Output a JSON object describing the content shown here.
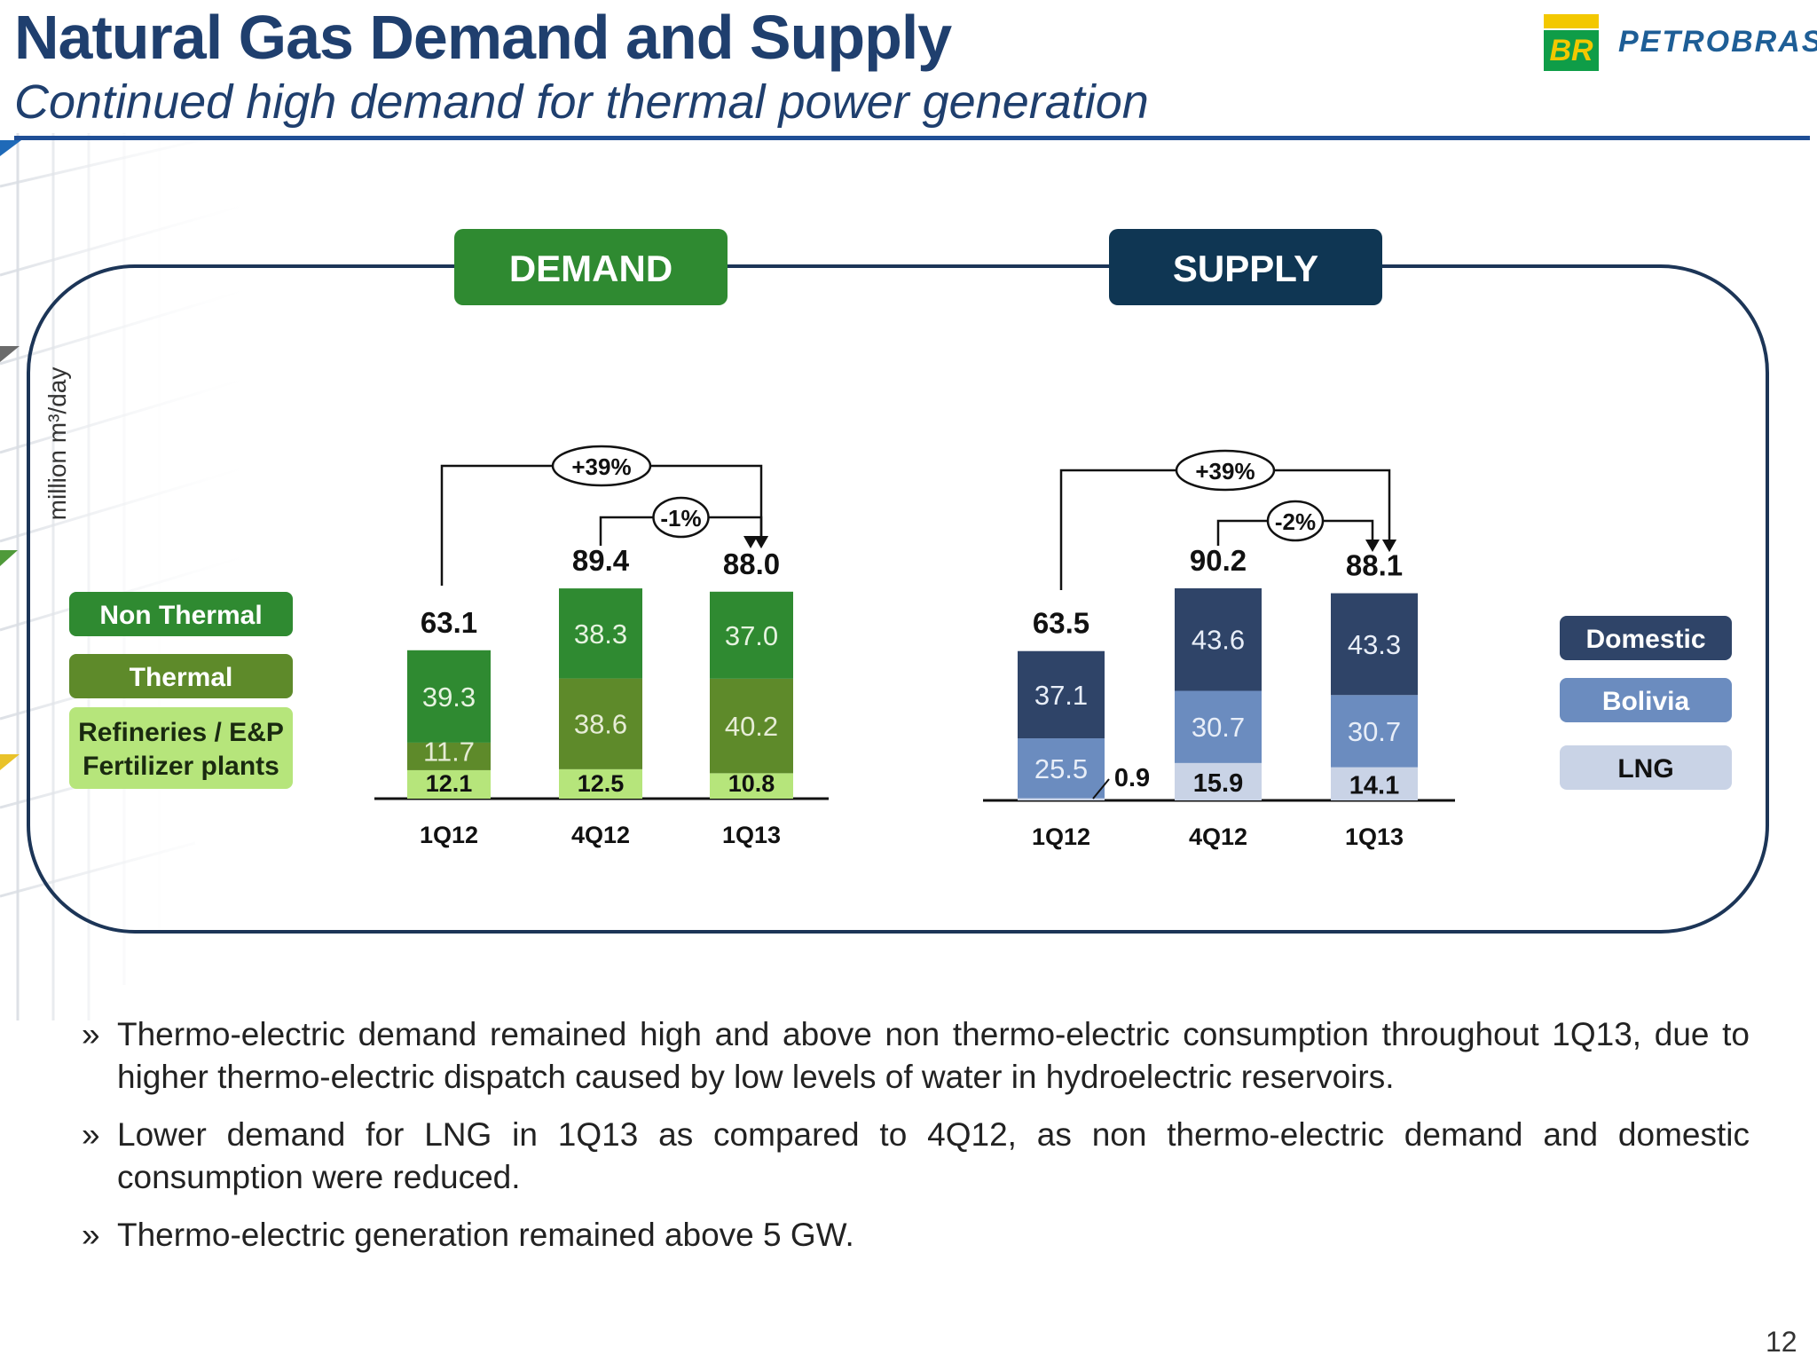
{
  "header": {
    "title": "Natural Gas Demand and Supply",
    "subtitle": "Continued high demand for thermal power generation"
  },
  "logo": {
    "badge_text": "BR",
    "brand_text": "PETROBRAS",
    "colors": {
      "green": "#0f9d48",
      "yellow": "#f3c800",
      "blue": "#1e5e96"
    }
  },
  "chart_data": [
    {
      "type": "bar",
      "stacked": true,
      "panel_label": "DEMAND",
      "ylabel": "million m³/day",
      "categories": [
        "1Q12",
        "4Q12",
        "1Q13"
      ],
      "series": [
        {
          "name": "Refineries / E&P Fertilizer plants",
          "color": "#b6e57b",
          "values": [
            12.1,
            12.5,
            10.8
          ]
        },
        {
          "name": "Thermal",
          "color": "#5e8a2a",
          "values": [
            11.7,
            38.6,
            40.2
          ]
        },
        {
          "name": "Non Thermal",
          "color": "#2f8a31",
          "values": [
            39.3,
            38.3,
            37.0
          ]
        }
      ],
      "totals": [
        63.1,
        89.4,
        88.0
      ],
      "value_labels": [
        [
          "12.1",
          "11.7",
          "39.3"
        ],
        [
          "12.5",
          "38.6",
          "38.3"
        ],
        [
          "10.8",
          "40.2",
          "37.0"
        ]
      ],
      "total_labels": [
        "63.1",
        "89.4",
        "88.0"
      ],
      "legend": [
        {
          "label": "Non Thermal",
          "color": "#2f8a31"
        },
        {
          "label": "Thermal",
          "color": "#5e8a2a"
        },
        {
          "label": "Refineries / E&P\nFertilizer plants",
          "color": "#b6e57b"
        }
      ],
      "legend_position": "left",
      "annotations": [
        {
          "text": "+39%",
          "from": "1Q12",
          "to": "1Q13"
        },
        {
          "text": "-1%",
          "from": "4Q12",
          "to": "1Q13"
        }
      ]
    },
    {
      "type": "bar",
      "stacked": true,
      "panel_label": "SUPPLY",
      "categories": [
        "1Q12",
        "4Q12",
        "1Q13"
      ],
      "series": [
        {
          "name": "LNG",
          "color": "#c9d3e6",
          "values": [
            0.9,
            15.9,
            14.1
          ]
        },
        {
          "name": "Bolivia",
          "color": "#6b8cbf",
          "values": [
            25.5,
            30.7,
            30.7
          ]
        },
        {
          "name": "Domestic",
          "color": "#2f4468",
          "values": [
            37.1,
            43.6,
            43.3
          ]
        }
      ],
      "totals": [
        63.5,
        90.2,
        88.1
      ],
      "value_labels": [
        [
          "0.9",
          "25.5",
          "37.1"
        ],
        [
          "15.9",
          "30.7",
          "43.6"
        ],
        [
          "14.1",
          "30.7",
          "43.3"
        ]
      ],
      "total_labels": [
        "63.5",
        "90.2",
        "88.1"
      ],
      "legend": [
        {
          "label": "Domestic",
          "color": "#2f4468"
        },
        {
          "label": "Bolivia",
          "color": "#6b8cbf"
        },
        {
          "label": "LNG",
          "color": "#c9d3e6"
        }
      ],
      "legend_position": "right",
      "annotations": [
        {
          "text": "+39%",
          "from": "1Q12",
          "to": "1Q13"
        },
        {
          "text": "-2%",
          "from": "4Q12",
          "to": "1Q13"
        }
      ]
    }
  ],
  "colors": {
    "title": "#1f3f6e",
    "rule": "#1f4e96",
    "frame": "#1c3557",
    "demand_header": "#2f8a31",
    "supply_header": "#0f3653"
  },
  "bullets": [
    "Thermo-electric demand remained high and above non thermo-electric consumption throughout 1Q13, due to higher thermo-electric dispatch caused by low levels of water in hydroelectric reservoirs.",
    "Lower demand for LNG in 1Q13 as compared to 4Q12, as non thermo-electric demand and domestic consumption were reduced.",
    "Thermo-electric generation remained above 5 GW."
  ],
  "bullet_mark": "»",
  "page_number": "12"
}
